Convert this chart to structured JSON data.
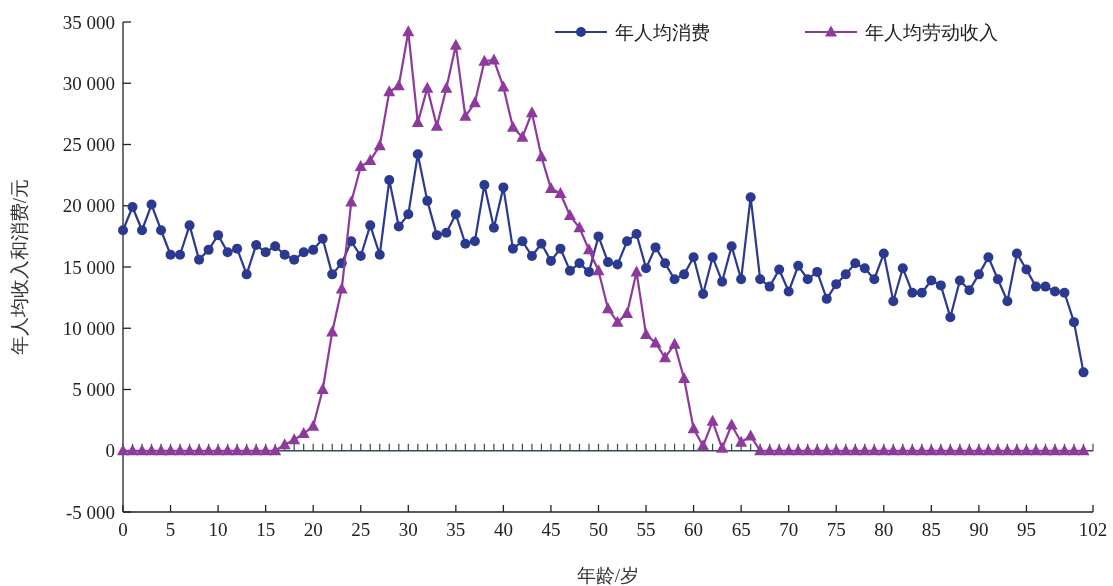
{
  "chart_data": {
    "type": "line",
    "xlabel": "年龄/岁",
    "ylabel": "年人均收入和消费/元",
    "x": [
      0,
      1,
      2,
      3,
      4,
      5,
      6,
      7,
      8,
      9,
      10,
      11,
      12,
      13,
      14,
      15,
      16,
      17,
      18,
      19,
      20,
      21,
      22,
      23,
      24,
      25,
      26,
      27,
      28,
      29,
      30,
      31,
      32,
      33,
      34,
      35,
      36,
      37,
      38,
      39,
      40,
      41,
      42,
      43,
      44,
      45,
      46,
      47,
      48,
      49,
      50,
      51,
      52,
      53,
      54,
      55,
      56,
      57,
      58,
      59,
      60,
      61,
      62,
      63,
      64,
      65,
      66,
      67,
      68,
      69,
      70,
      71,
      72,
      73,
      74,
      75,
      76,
      77,
      78,
      79,
      80,
      81,
      82,
      83,
      84,
      85,
      86,
      87,
      88,
      89,
      90,
      91,
      92,
      93,
      94,
      95,
      96,
      97,
      98,
      99,
      100,
      101
    ],
    "series": [
      {
        "name": "年人均消费",
        "color": "#2b3990",
        "marker": "circle",
        "values": [
          18000,
          19900,
          18000,
          20100,
          18000,
          16000,
          16000,
          18400,
          15600,
          16400,
          17600,
          16200,
          16500,
          14400,
          16800,
          16200,
          16700,
          16000,
          15600,
          16200,
          16400,
          17300,
          14400,
          15300,
          17100,
          15900,
          18400,
          16000,
          22100,
          18300,
          19300,
          24200,
          20400,
          17600,
          17800,
          19300,
          16900,
          17100,
          21700,
          18200,
          21500,
          16500,
          17100,
          15900,
          16900,
          15500,
          16500,
          14700,
          15300,
          14600,
          17500,
          15400,
          15200,
          17100,
          17700,
          14900,
          16600,
          15300,
          14000,
          14400,
          15800,
          12800,
          15800,
          13800,
          16700,
          14000,
          20700,
          14000,
          13400,
          14800,
          13000,
          15100,
          14000,
          14600,
          12400,
          13600,
          14400,
          15300,
          14900,
          14000,
          16100,
          12200,
          14900,
          12900,
          12900,
          13900,
          13500,
          10900,
          13900,
          13100,
          14400,
          15800,
          14000,
          12200,
          16100,
          14800,
          13400,
          13400,
          13000,
          12900,
          10500,
          6400
        ]
      },
      {
        "name": "年人均劳动收入",
        "color": "#8e3a9d",
        "marker": "triangle",
        "values": [
          0,
          0,
          0,
          0,
          0,
          0,
          0,
          0,
          0,
          0,
          0,
          0,
          0,
          0,
          0,
          0,
          0,
          500,
          900,
          1400,
          2000,
          5000,
          9700,
          13200,
          20300,
          23200,
          23700,
          24900,
          29300,
          29800,
          34200,
          26800,
          29600,
          26500,
          29600,
          33100,
          27300,
          28400,
          31800,
          31900,
          29700,
          26400,
          25600,
          27600,
          24000,
          21400,
          21000,
          19200,
          18200,
          16400,
          14700,
          11600,
          10500,
          11200,
          14600,
          9500,
          8800,
          7600,
          8700,
          5900,
          1800,
          400,
          2400,
          200,
          2100,
          700,
          1200,
          0,
          0,
          0,
          0,
          0,
          0,
          0,
          0,
          0,
          0,
          0,
          0,
          0,
          0,
          0,
          0,
          0,
          0,
          0,
          0,
          0,
          0,
          0,
          0,
          0,
          0,
          0,
          0,
          0,
          0,
          0,
          0,
          0,
          0,
          0
        ]
      }
    ],
    "xlim": [
      0,
      102
    ],
    "xticks": [
      0,
      {
        "value": 1,
        "label": null
      },
      {
        "value": 2,
        "label": null
      },
      {
        "value": 3,
        "label": null
      },
      {
        "value": 4,
        "label": null
      },
      5,
      {
        "value": 6,
        "label": null
      },
      {
        "value": 7,
        "label": null
      },
      {
        "value": 8,
        "label": null
      },
      {
        "value": 9,
        "label": null
      },
      10,
      {
        "value": 11,
        "label": null
      },
      {
        "value": 12,
        "label": null
      },
      {
        "value": 13,
        "label": null
      },
      {
        "value": 14,
        "label": null
      },
      15,
      {
        "value": 16,
        "label": null
      },
      {
        "value": 17,
        "label": null
      },
      {
        "value": 18,
        "label": null
      },
      {
        "value": 19,
        "label": null
      },
      20,
      {
        "value": 21,
        "label": null
      },
      {
        "value": 22,
        "label": null
      },
      {
        "value": 23,
        "label": null
      },
      {
        "value": 24,
        "label": null
      },
      25,
      {
        "value": 26,
        "label": null
      },
      {
        "value": 27,
        "label": null
      },
      {
        "value": 28,
        "label": null
      },
      {
        "value": 29,
        "label": null
      },
      30,
      {
        "value": 31,
        "label": null
      },
      {
        "value": 32,
        "label": null
      },
      {
        "value": 33,
        "label": null
      },
      {
        "value": 34,
        "label": null
      },
      35,
      {
        "value": 36,
        "label": null
      },
      {
        "value": 37,
        "label": null
      },
      {
        "value": 38,
        "label": null
      },
      {
        "value": 39,
        "label": null
      },
      40,
      {
        "value": 41,
        "label": null
      },
      {
        "value": 42,
        "label": null
      },
      {
        "value": 43,
        "label": null
      },
      {
        "value": 44,
        "label": null
      },
      45,
      {
        "value": 46,
        "label": null
      },
      {
        "value": 47,
        "label": null
      },
      {
        "value": 48,
        "label": null
      },
      {
        "value": 49,
        "label": null
      },
      50,
      {
        "value": 51,
        "label": null
      },
      {
        "value": 52,
        "label": null
      },
      {
        "value": 53,
        "label": null
      },
      {
        "value": 54,
        "label": null
      },
      55,
      {
        "value": 56,
        "label": null
      },
      {
        "value": 57,
        "label": null
      },
      {
        "value": 58,
        "label": null
      },
      {
        "value": 59,
        "label": null
      },
      60,
      {
        "value": 61,
        "label": null
      },
      {
        "value": 62,
        "label": null
      },
      {
        "value": 63,
        "label": null
      },
      {
        "value": 64,
        "label": null
      },
      65,
      {
        "value": 66,
        "label": null
      },
      {
        "value": 67,
        "label": null
      },
      {
        "value": 68,
        "label": null
      },
      {
        "value": 69,
        "label": null
      },
      70,
      {
        "value": 71,
        "label": null
      },
      {
        "value": 72,
        "label": null
      },
      {
        "value": 73,
        "label": null
      },
      {
        "value": 74,
        "label": null
      },
      75,
      {
        "value": 76,
        "label": null
      },
      {
        "value": 77,
        "label": null
      },
      {
        "value": 78,
        "label": null
      },
      {
        "value": 79,
        "label": null
      },
      80,
      {
        "value": 81,
        "label": null
      },
      {
        "value": 82,
        "label": null
      },
      {
        "value": 83,
        "label": null
      },
      {
        "value": 84,
        "label": null
      },
      85,
      {
        "value": 86,
        "label": null
      },
      {
        "value": 87,
        "label": null
      },
      {
        "value": 88,
        "label": null
      },
      {
        "value": 89,
        "label": null
      },
      90,
      {
        "value": 91,
        "label": null
      },
      {
        "value": 92,
        "label": null
      },
      {
        "value": 93,
        "label": null
      },
      {
        "value": 94,
        "label": null
      },
      95,
      {
        "value": 96,
        "label": null
      },
      {
        "value": 97,
        "label": null
      },
      {
        "value": 98,
        "label": null
      },
      {
        "value": 99,
        "label": null
      },
      {
        "value": 100,
        "label": null
      },
      {
        "value": 101,
        "label": null
      },
      102
    ],
    "ylim": [
      -5000,
      35000
    ],
    "yticks": [
      {
        "value": -5000,
        "label": "-5 000"
      },
      0,
      {
        "value": 5000,
        "label": "5 000"
      },
      {
        "value": 10000,
        "label": "10 000"
      },
      {
        "value": 15000,
        "label": "15 000"
      },
      {
        "value": 20000,
        "label": "20 000"
      },
      {
        "value": 25000,
        "label": "25 000"
      },
      {
        "value": 30000,
        "label": "30 000"
      },
      {
        "value": 35000,
        "label": "35 000"
      }
    ],
    "ref_lines": [
      {
        "axis": "y",
        "value": 0,
        "color": "#2f4f4f"
      }
    ],
    "legend": "top right",
    "grid": false,
    "line_style": "solid"
  }
}
